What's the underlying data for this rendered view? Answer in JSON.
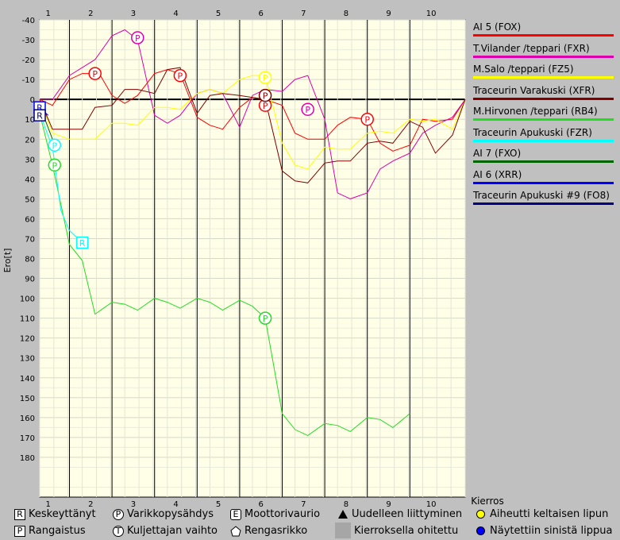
{
  "chart_data": {
    "type": "line",
    "ylabel": "Ero[t]",
    "xlabel": "Kierros",
    "y_ticks": [
      "-40",
      "-30",
      "-20",
      "-10",
      "0",
      "10",
      "20",
      "30",
      "40",
      "50",
      "60",
      "70",
      "80",
      "90",
      "100",
      "110",
      "120",
      "130",
      "140",
      "150",
      "160",
      "170",
      "180"
    ],
    "lap_labels_top": [
      "1",
      "2",
      "3",
      "4",
      "5",
      "6",
      "7",
      "8",
      "9",
      "10"
    ],
    "lap_labels_bottom": [
      "1",
      "2",
      "3",
      "4",
      "5",
      "6",
      "7",
      "8",
      "9",
      "10"
    ],
    "xlim": [
      0,
      10
    ],
    "ylim": [
      -40,
      200
    ],
    "grid": true,
    "series": [
      {
        "name": "AI 5 (FOX)",
        "color": "#ff0000",
        "points": [
          [
            0,
            0
          ],
          [
            0.3,
            3
          ],
          [
            0.7,
            -10
          ],
          [
            1.0,
            -13
          ],
          [
            1.4,
            -13
          ],
          [
            1.7,
            -2
          ],
          [
            2.0,
            2
          ],
          [
            2.3,
            -2
          ],
          [
            2.7,
            -13
          ],
          [
            3.0,
            -15
          ],
          [
            3.3,
            -13
          ],
          [
            3.7,
            9
          ],
          [
            4.0,
            13
          ],
          [
            4.3,
            15
          ],
          [
            4.7,
            4
          ],
          [
            5.0,
            -1
          ],
          [
            5.3,
            0
          ],
          [
            5.7,
            3
          ],
          [
            6.0,
            17
          ],
          [
            6.3,
            20
          ],
          [
            6.7,
            20
          ],
          [
            7.0,
            13
          ],
          [
            7.3,
            9
          ],
          [
            7.7,
            10
          ],
          [
            8.0,
            22
          ],
          [
            8.3,
            26
          ],
          [
            8.7,
            23
          ],
          [
            9.0,
            10
          ],
          [
            9.3,
            11
          ],
          [
            9.7,
            10
          ],
          [
            10.0,
            0
          ]
        ],
        "markers": [
          {
            "x": 1.3,
            "y": -13,
            "t": "P"
          },
          {
            "x": 3.3,
            "y": -12,
            "t": "P"
          },
          {
            "x": 5.3,
            "y": 3,
            "t": "P"
          },
          {
            "x": 7.7,
            "y": 10,
            "t": "P"
          }
        ]
      },
      {
        "name": "T.Vilander /teppari (FXR)",
        "color": "#dd00aa",
        "points": [
          [
            0,
            0
          ],
          [
            0.3,
            0
          ],
          [
            0.7,
            -12
          ],
          [
            1.0,
            -16
          ],
          [
            1.3,
            -20
          ],
          [
            1.7,
            -32
          ],
          [
            2.0,
            -35
          ],
          [
            2.3,
            -30
          ],
          [
            2.7,
            8
          ],
          [
            3.0,
            12
          ],
          [
            3.3,
            8
          ],
          [
            3.7,
            -3
          ],
          [
            4.0,
            -5
          ],
          [
            4.3,
            -3
          ],
          [
            4.7,
            14
          ],
          [
            5.0,
            -2
          ],
          [
            5.3,
            -5
          ],
          [
            5.7,
            -4
          ],
          [
            6.0,
            -10
          ],
          [
            6.3,
            -12
          ],
          [
            6.7,
            10
          ],
          [
            7.0,
            47
          ],
          [
            7.3,
            50
          ],
          [
            7.7,
            47
          ],
          [
            8.0,
            35
          ],
          [
            8.3,
            31
          ],
          [
            8.7,
            27
          ],
          [
            9.0,
            17
          ],
          [
            9.3,
            13
          ],
          [
            9.7,
            9
          ],
          [
            10.0,
            0
          ]
        ],
        "markers": [
          {
            "x": 2.3,
            "y": -31,
            "t": "P"
          },
          {
            "x": 6.3,
            "y": 5,
            "t": "P"
          }
        ]
      },
      {
        "name": "M.Salo /teppari (FZ5)",
        "color": "#ffff00",
        "points": [
          [
            0,
            0
          ],
          [
            0.3,
            17
          ],
          [
            0.7,
            20
          ],
          [
            1.0,
            20
          ],
          [
            1.3,
            20
          ],
          [
            1.7,
            12
          ],
          [
            2.0,
            12
          ],
          [
            2.3,
            13
          ],
          [
            2.7,
            4
          ],
          [
            3.0,
            4
          ],
          [
            3.3,
            5
          ],
          [
            3.7,
            -3
          ],
          [
            4.0,
            -5
          ],
          [
            4.3,
            -3
          ],
          [
            4.7,
            -10
          ],
          [
            5.0,
            -12
          ],
          [
            5.3,
            -12
          ],
          [
            5.7,
            22
          ],
          [
            6.0,
            33
          ],
          [
            6.3,
            35
          ],
          [
            6.7,
            24
          ],
          [
            7.0,
            25
          ],
          [
            7.3,
            25
          ],
          [
            7.7,
            17
          ],
          [
            8.0,
            16
          ],
          [
            8.3,
            17
          ],
          [
            8.7,
            10
          ],
          [
            9.0,
            11
          ],
          [
            9.3,
            10
          ],
          [
            9.7,
            15
          ],
          [
            10.0,
            0
          ]
        ],
        "markers": [
          {
            "x": 5.3,
            "y": -11,
            "t": "P"
          }
        ]
      },
      {
        "name": "Traceurin Varakuski (XFR)",
        "color": "#800000",
        "points": [
          [
            0,
            0
          ],
          [
            0.3,
            15
          ],
          [
            0.7,
            15
          ],
          [
            1.0,
            15
          ],
          [
            1.3,
            4
          ],
          [
            1.7,
            3
          ],
          [
            2.0,
            -5
          ],
          [
            2.3,
            -5
          ],
          [
            2.7,
            -3
          ],
          [
            3.0,
            -15
          ],
          [
            3.3,
            -16
          ],
          [
            3.7,
            7
          ],
          [
            4.0,
            -2
          ],
          [
            4.3,
            -3
          ],
          [
            4.7,
            -2
          ],
          [
            5.0,
            -1
          ],
          [
            5.3,
            0
          ],
          [
            5.7,
            36
          ],
          [
            6.0,
            41
          ],
          [
            6.3,
            42
          ],
          [
            6.7,
            32
          ],
          [
            7.0,
            31
          ],
          [
            7.3,
            31
          ],
          [
            7.7,
            22
          ],
          [
            8.0,
            21
          ],
          [
            8.3,
            22
          ],
          [
            8.7,
            11
          ],
          [
            9.0,
            14
          ],
          [
            9.3,
            27
          ],
          [
            9.7,
            18
          ],
          [
            10.0,
            0
          ]
        ],
        "markers": [
          {
            "x": 5.3,
            "y": -2,
            "t": "P"
          }
        ]
      },
      {
        "name": "M.Hirvonen /teppari (RB4)",
        "color": "#22dd22",
        "points": [
          [
            0,
            7
          ],
          [
            0.3,
            33
          ],
          [
            0.7,
            73
          ],
          [
            1.0,
            81
          ],
          [
            1.3,
            108
          ],
          [
            1.7,
            102
          ],
          [
            2.0,
            103
          ],
          [
            2.3,
            106
          ],
          [
            2.7,
            100
          ],
          [
            3.0,
            102
          ],
          [
            3.3,
            105
          ],
          [
            3.7,
            100
          ],
          [
            4.0,
            102
          ],
          [
            4.3,
            106
          ],
          [
            4.7,
            101
          ],
          [
            5.0,
            104
          ],
          [
            5.3,
            110
          ],
          [
            5.7,
            158
          ],
          [
            6.0,
            166
          ],
          [
            6.3,
            169
          ],
          [
            6.7,
            163
          ],
          [
            7.0,
            164
          ],
          [
            7.3,
            167
          ],
          [
            7.7,
            160
          ],
          [
            8.0,
            161
          ],
          [
            8.3,
            165
          ],
          [
            8.7,
            158
          ]
        ],
        "markers": [
          {
            "x": 0.35,
            "y": 33,
            "t": "P"
          },
          {
            "x": 5.3,
            "y": 110,
            "t": "P"
          }
        ]
      },
      {
        "name": "Traceurin Apukuski (FZR)",
        "color": "#00ffff",
        "points": [
          [
            0,
            7
          ],
          [
            0.3,
            24
          ],
          [
            0.5,
            56
          ],
          [
            0.7,
            66
          ],
          [
            1.0,
            72
          ]
        ],
        "markers": [
          {
            "x": 0.35,
            "y": 23,
            "t": "P"
          },
          {
            "x": 1.0,
            "y": 72,
            "t": "R"
          }
        ]
      },
      {
        "name": "AI 7 (FXO)",
        "color": "#006400",
        "points": [
          [
            0,
            3
          ],
          [
            0.3,
            20
          ]
        ],
        "markers": []
      },
      {
        "name": "AI 6 (XRR)",
        "color": "#0000ff",
        "points": [
          [
            0,
            4
          ],
          [
            0.2,
            8
          ]
        ],
        "markers": [
          {
            "x": 0,
            "y": 4,
            "t": "R"
          }
        ]
      },
      {
        "name": "Traceurin Apukuski #9 (FO8)",
        "color": "#000080",
        "points": [
          [
            0,
            8
          ],
          [
            0.1,
            8
          ]
        ],
        "markers": [
          {
            "x": 0,
            "y": 8,
            "t": "R"
          }
        ]
      }
    ]
  },
  "symbols": {
    "retired": "Keskeyttänyt",
    "pitstop": "Varikkopysähdys",
    "engine": "Moottorivaurio",
    "rejoin": "Uudelleen liittyminen",
    "yellow": "Aiheutti keltaisen lipun",
    "penalty": "Rangaistus",
    "driver_change": "Kuljettajan vaihto",
    "tyre": "Rengasrikko",
    "lapped": "Kierroksella ohitettu",
    "blue": "Näytettiin sinistä lippua"
  },
  "symbol_glyphs": {
    "r": "R",
    "p": "P",
    "e": "E",
    "t": "T"
  },
  "colors": {
    "yellow_flag": "#ffff00",
    "blue_flag": "#0000ff",
    "plot_bg": "#ffffe8"
  }
}
